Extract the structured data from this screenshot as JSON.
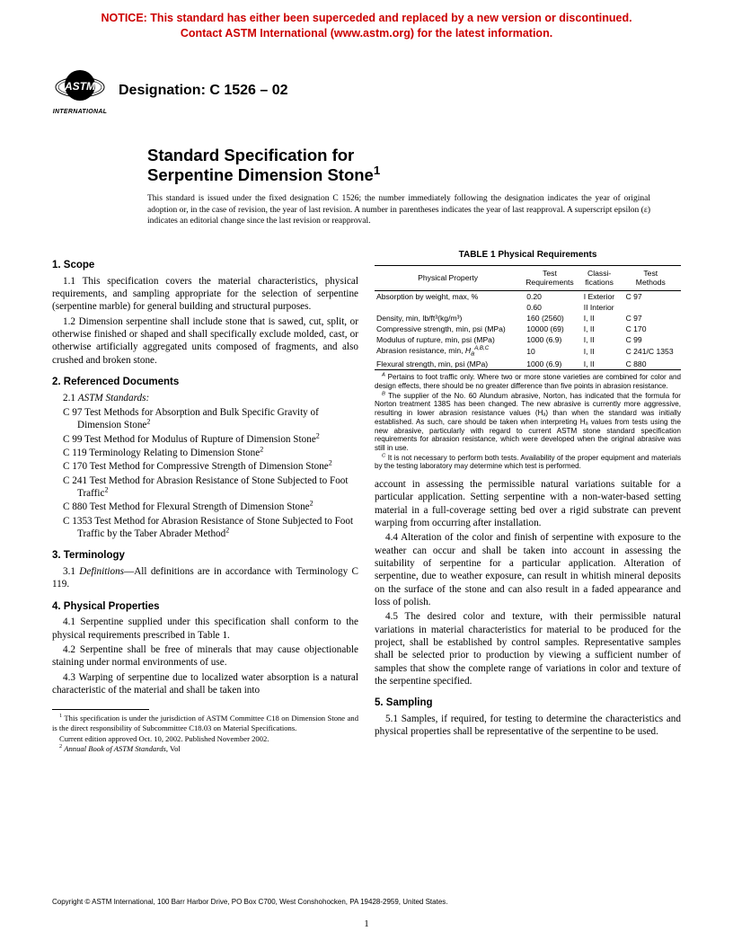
{
  "notice": {
    "line1": "NOTICE: This standard has either been superceded and replaced by a new version or discontinued.",
    "line2": "Contact ASTM International (www.astm.org) for the latest information."
  },
  "logo": {
    "label": "INTERNATIONAL"
  },
  "designation": "Designation: C 1526 – 02",
  "title": {
    "l1": "Standard Specification for",
    "l2": "Serpentine Dimension Stone",
    "sup": "1"
  },
  "issuance": "This standard is issued under the fixed designation C 1526; the number immediately following the designation indicates the year of original adoption or, in the case of revision, the year of last revision. A number in parentheses indicates the year of last reapproval. A superscript epsilon (ε) indicates an editorial change since the last revision or reapproval.",
  "sections": {
    "s1": {
      "h": "1. Scope",
      "p1": "1.1 This specification covers the material characteristics, physical requirements, and sampling appropriate for the selection of serpentine (serpentine marble) for general building and structural purposes.",
      "p2": "1.2 Dimension serpentine shall include stone that is sawed, cut, split, or otherwise finished or shaped and shall specifically exclude molded, cast, or otherwise artificially aggregated units composed of fragments, and also crushed and broken stone."
    },
    "s2": {
      "h": "2. Referenced Documents",
      "intro_num": "2.1 ",
      "intro_label": "ASTM Standards:",
      "refs": [
        "C 97  Test Methods for Absorption and Bulk Specific Gravity of Dimension Stone",
        "C 99  Test Method for Modulus of Rupture of Dimension Stone",
        "C 119  Terminology Relating to Dimension Stone",
        "C 170  Test Method for Compressive Strength of Dimension Stone",
        "C 241  Test Method for Abrasion Resistance of Stone Subjected to Foot Traffic",
        "C 880  Test Method for Flexural Strength of Dimension Stone",
        "C 1353  Test Method for Abrasion Resistance of Stone Subjected to Foot Traffic by the Taber Abrader Method"
      ],
      "ref_sup": "2"
    },
    "s3": {
      "h": "3. Terminology",
      "p1_num": "3.1 ",
      "p1_label": "Definitions",
      "p1_rest": "—All definitions are in accordance with Terminology C 119."
    },
    "s4": {
      "h": "4. Physical Properties",
      "p1": "4.1 Serpentine supplied under this specification shall conform to the physical requirements prescribed in Table 1.",
      "p2": "4.2 Serpentine shall be free of minerals that may cause objectionable staining under normal environments of use.",
      "p3": "4.3 Warping of serpentine due to localized water absorption is a natural characteristic of the material and shall be taken into",
      "p3b": "account in assessing the permissible natural variations suitable for a particular application. Setting serpentine with a non-water-based setting material in a full-coverage setting bed over a rigid substrate can prevent warping from occurring after installation.",
      "p4": "4.4 Alteration of the color and finish of serpentine with exposure to the weather can occur and shall be taken into account in assessing the suitability of serpentine for a particular application. Alteration of serpentine, due to weather exposure, can result in whitish mineral deposits on the surface of the stone and can also result in a faded appearance and loss of polish.",
      "p5": "4.5 The desired color and texture, with their permissible natural variations in material characteristics for material to be produced for the project, shall be established by control samples. Representative samples shall be selected prior to production by viewing a sufficient number of samples that show the complete range of variations in color and texture of the serpentine specified."
    },
    "s5": {
      "h": "5. Sampling",
      "p1": "5.1 Samples, if required, for testing to determine the characteristics and physical properties shall be representative of the serpentine to be used."
    }
  },
  "footnotes": {
    "f1": " This specification is under the jurisdiction of ASTM Committee C18 on Dimension Stone and is the direct responsibility of Subcommittee C18.03 on Material Specifications.",
    "f1b": "Current edition approved Oct. 10, 2002. Published November 2002.",
    "f2_label": "Annual Book of ASTM Standards",
    "f2_rest": ", Vol"
  },
  "table": {
    "title": "TABLE 1  Physical Requirements",
    "headers": [
      "Physical Property",
      "Test\nRequirements",
      "Classi-\nfications",
      "Test\nMethods"
    ],
    "rows": [
      [
        "Absorption by weight, max, %",
        "0.20",
        "I Exterior",
        "C 97"
      ],
      [
        "",
        "0.60",
        "II Interior",
        ""
      ],
      [
        "Density, min, lb/ft³(kg/m³)",
        "160 (2560)",
        "I, II",
        "C 97"
      ],
      [
        "Compressive strength, min, psi (MPa)",
        "10000 (69)",
        "I, II",
        "C 170"
      ],
      [
        "Modulus of rupture, min, psi (MPa)",
        "1000 (6.9)",
        "I, II",
        "C 99"
      ],
      [
        "Abrasion resistance, min, HₐA,B,C",
        "10",
        "I, II",
        "C 241/C 1353"
      ],
      [
        "Flexural strength, min, psi (MPa)",
        "1000 (6.9)",
        "I, II",
        "C 880"
      ]
    ],
    "notes": {
      "A": " Pertains to foot traffic only. Where two or more stone varieties are combined for color and design effects, there should be no greater difference than five points in abrasion resistance.",
      "B": " The supplier of the No. 60 Alundum abrasive, Norton, has indicated that the formula for Norton treatment 138S has been changed. The new abrasive is currently more aggressive, resulting in lower abrasion resistance values (Hₐ) than when the standard was initially established. As such, care should be taken when interpreting Hₐ values from tests using the new abrasive, particularly with regard to current ASTM stone standard specification requirements for abrasion resistance, which were developed when the original abrasive was still in use.",
      "C": " It is not necessary to perform both tests. Availability of the proper equipment and materials by the testing laboratory may determine which test is performed."
    }
  },
  "copyright": "Copyright © ASTM International, 100 Barr Harbor Drive, PO Box C700, West Conshohocken, PA 19428-2959, United States.",
  "page": "1"
}
